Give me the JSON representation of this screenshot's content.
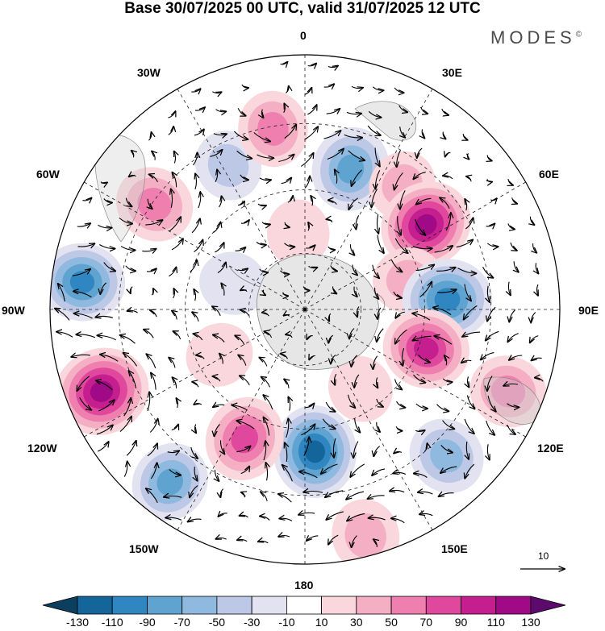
{
  "title": "Base 30/07/2025 00 UTC, valid 31/07/2025 12 UTC",
  "brand": "MODES",
  "brand_mark": "©",
  "longitude_labels": {
    "top": "0",
    "lon_30e": "30E",
    "lon_60e": "60E",
    "lon_90e": "90E",
    "lon_120e": "120E",
    "lon_150e": "150E",
    "bottom": "180",
    "lon_150w": "150W",
    "lon_120w": "120W",
    "lon_90w": "90W",
    "lon_60w": "60W",
    "lon_30w": "30W"
  },
  "reference_vector": {
    "label": "10"
  },
  "colorbar": {
    "levels": [
      -130,
      -110,
      -90,
      -70,
      -50,
      -30,
      -10,
      10,
      30,
      50,
      70,
      90,
      110,
      130
    ],
    "labels": [
      "-130",
      "-110",
      "-90",
      "-70",
      "-50",
      "-30",
      "-10",
      "10",
      "30",
      "50",
      "70",
      "90",
      "110",
      "130"
    ],
    "colors": [
      "#0c3e5e",
      "#13659a",
      "#2f86c0",
      "#5fa3d0",
      "#8fb9df",
      "#bcc8e6",
      "#e2e2f0",
      "#ffffff",
      "#fad7dc",
      "#f5afc4",
      "#ee7fae",
      "#e0489d",
      "#c41e8f",
      "#a00a86",
      "#5c0a6c"
    ]
  },
  "map_data": {
    "projection": "south polar stereographic",
    "anomalies": [
      {
        "name": "a1",
        "lon": 18,
        "colat": 0.58,
        "value": -85
      },
      {
        "name": "a2",
        "lon": 38,
        "colat": 0.62,
        "value": 30
      },
      {
        "name": "a3",
        "lon": 55,
        "colat": 0.58,
        "value": 115
      },
      {
        "name": "a4",
        "lon": 74,
        "colat": 0.42,
        "value": 35
      },
      {
        "name": "a5",
        "lon": 86,
        "colat": 0.56,
        "value": -105
      },
      {
        "name": "a6",
        "lon": 108,
        "colat": 0.5,
        "value": 95
      },
      {
        "name": "a7",
        "lon": 112,
        "colat": 0.86,
        "value": 60
      },
      {
        "name": "a8",
        "lon": 136,
        "colat": 0.8,
        "value": -60
      },
      {
        "name": "a9",
        "lon": 165,
        "colat": 0.92,
        "value": 45
      },
      {
        "name": "a10",
        "lon": 176,
        "colat": 0.56,
        "value": -115
      },
      {
        "name": "a11",
        "lon": -155,
        "colat": 0.56,
        "value": 85
      },
      {
        "name": "a12",
        "lon": -142,
        "colat": 0.86,
        "value": -70
      },
      {
        "name": "a13",
        "lon": -112,
        "colat": 0.86,
        "value": 125
      },
      {
        "name": "a14",
        "lon": -83,
        "colat": 0.88,
        "value": -90
      },
      {
        "name": "a15",
        "lon": -55,
        "colat": 0.72,
        "value": 65
      },
      {
        "name": "a16",
        "lon": -28,
        "colat": 0.64,
        "value": -35
      },
      {
        "name": "a17",
        "lon": -10,
        "colat": 0.72,
        "value": 55
      },
      {
        "name": "a18",
        "lon": -5,
        "colat": 0.3,
        "value": 25
      },
      {
        "name": "a19",
        "lon": -118,
        "colat": 0.38,
        "value": 25
      },
      {
        "name": "a20",
        "lon": -70,
        "colat": 0.3,
        "value": -25
      },
      {
        "name": "a21",
        "lon": 145,
        "colat": 0.38,
        "value": 25
      }
    ]
  }
}
